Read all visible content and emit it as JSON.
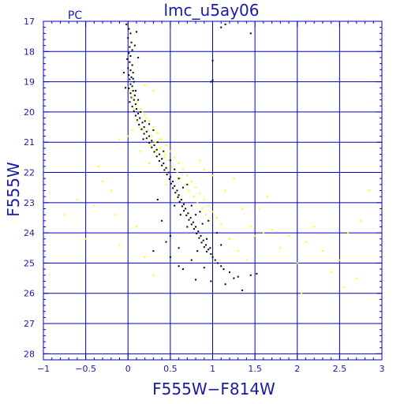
{
  "chart_data": {
    "type": "scatter",
    "title": "lmc_u5ay06",
    "corner_label": "PC",
    "xlabel": "F555W−F814W",
    "ylabel": "F555W",
    "xlim": [
      -1,
      3
    ],
    "ylim": [
      28.2,
      17.0
    ],
    "y_inverted": true,
    "grid": true,
    "x_major_ticks": [
      -1,
      -0.5,
      0,
      0.5,
      1,
      1.5,
      2,
      2.5,
      3
    ],
    "x_tick_labels": [
      "−1",
      "−0.5",
      "0",
      "0.5",
      "1",
      "1.5",
      "2",
      "2.5",
      "3"
    ],
    "y_major_ticks": [
      17,
      18,
      19,
      20,
      21,
      22,
      23,
      24,
      25,
      26,
      27,
      28
    ],
    "y_tick_labels": [
      "17",
      "18",
      "19",
      "20",
      "21",
      "22",
      "23",
      "24",
      "25",
      "26",
      "27",
      "28"
    ],
    "x_grid_lines": [
      -0.5,
      0,
      0.5,
      1,
      1.5,
      2,
      2.5
    ],
    "y_grid_lines": [
      18,
      19,
      20,
      21,
      22,
      23,
      24,
      25,
      26,
      27,
      28
    ],
    "colors": {
      "axis": "#0000cc",
      "text": "#1a1aa6",
      "series_black": "#000000",
      "series_yellow": "#ffff00"
    },
    "series": [
      {
        "color": "#000000",
        "points": [
          [
            -0.02,
            17.1
          ],
          [
            0.01,
            17.25
          ],
          [
            0.03,
            17.4
          ],
          [
            0.0,
            17.55
          ],
          [
            0.04,
            17.7
          ],
          [
            0.02,
            17.85
          ],
          [
            0.05,
            17.95
          ],
          [
            0.01,
            18.05
          ],
          [
            0.03,
            18.15
          ],
          [
            -0.01,
            18.25
          ],
          [
            0.02,
            18.35
          ],
          [
            0.05,
            18.45
          ],
          [
            0.0,
            18.55
          ],
          [
            0.03,
            18.62
          ],
          [
            0.06,
            18.7
          ],
          [
            0.01,
            18.78
          ],
          [
            0.04,
            18.85
          ],
          [
            0.02,
            18.92
          ],
          [
            0.07,
            19.0
          ],
          [
            0.03,
            19.08
          ],
          [
            0.05,
            19.15
          ],
          [
            0.01,
            19.22
          ],
          [
            0.06,
            19.3
          ],
          [
            0.03,
            19.38
          ],
          [
            0.08,
            19.45
          ],
          [
            0.04,
            19.52
          ],
          [
            0.07,
            19.6
          ],
          [
            0.02,
            19.67
          ],
          [
            0.09,
            19.74
          ],
          [
            0.05,
            19.82
          ],
          [
            0.1,
            19.9
          ],
          [
            0.07,
            19.97
          ],
          [
            0.12,
            20.05
          ],
          [
            0.09,
            20.12
          ],
          [
            0.14,
            20.2
          ],
          [
            0.11,
            20.27
          ],
          [
            0.17,
            20.35
          ],
          [
            0.13,
            20.42
          ],
          [
            0.19,
            20.5
          ],
          [
            0.16,
            20.57
          ],
          [
            0.22,
            20.65
          ],
          [
            0.19,
            20.72
          ],
          [
            0.25,
            20.8
          ],
          [
            0.22,
            20.87
          ],
          [
            0.28,
            20.95
          ],
          [
            0.25,
            21.02
          ],
          [
            0.31,
            21.1
          ],
          [
            0.28,
            21.17
          ],
          [
            0.34,
            21.25
          ],
          [
            0.31,
            21.32
          ],
          [
            0.37,
            21.4
          ],
          [
            0.34,
            21.47
          ],
          [
            0.4,
            21.55
          ],
          [
            0.37,
            21.62
          ],
          [
            0.42,
            21.7
          ],
          [
            0.4,
            21.77
          ],
          [
            0.45,
            21.85
          ],
          [
            0.43,
            21.92
          ],
          [
            0.48,
            22.0
          ],
          [
            0.46,
            22.07
          ],
          [
            0.5,
            22.15
          ],
          [
            0.49,
            22.22
          ],
          [
            0.53,
            22.3
          ],
          [
            0.51,
            22.37
          ],
          [
            0.55,
            22.45
          ],
          [
            0.53,
            22.52
          ],
          [
            0.58,
            22.6
          ],
          [
            0.56,
            22.67
          ],
          [
            0.6,
            22.75
          ],
          [
            0.59,
            22.82
          ],
          [
            0.63,
            22.9
          ],
          [
            0.61,
            22.97
          ],
          [
            0.66,
            23.05
          ],
          [
            0.64,
            23.12
          ],
          [
            0.68,
            23.2
          ],
          [
            0.66,
            23.27
          ],
          [
            0.71,
            23.35
          ],
          [
            0.69,
            23.42
          ],
          [
            0.74,
            23.5
          ],
          [
            0.72,
            23.57
          ],
          [
            0.77,
            23.65
          ],
          [
            0.75,
            23.72
          ],
          [
            0.8,
            23.8
          ],
          [
            0.78,
            23.87
          ],
          [
            0.83,
            23.95
          ],
          [
            0.81,
            24.02
          ],
          [
            0.86,
            24.1
          ],
          [
            0.84,
            24.17
          ],
          [
            0.89,
            24.25
          ],
          [
            0.87,
            24.32
          ],
          [
            0.92,
            24.4
          ],
          [
            0.9,
            24.47
          ],
          [
            0.95,
            24.55
          ],
          [
            0.93,
            24.62
          ],
          [
            0.98,
            24.7
          ],
          [
            1.0,
            24.8
          ],
          [
            1.03,
            24.9
          ],
          [
            1.06,
            25.0
          ],
          [
            1.1,
            25.1
          ],
          [
            1.13,
            25.2
          ],
          [
            0.55,
            23.1
          ],
          [
            0.62,
            23.4
          ],
          [
            0.7,
            23.8
          ],
          [
            0.5,
            24.1
          ],
          [
            0.45,
            24.3
          ],
          [
            0.6,
            24.5
          ],
          [
            0.82,
            24.6
          ],
          [
            0.75,
            24.9
          ],
          [
            0.9,
            25.15
          ],
          [
            1.2,
            25.3
          ],
          [
            1.25,
            25.5
          ],
          [
            1.15,
            25.7
          ],
          [
            1.3,
            25.45
          ],
          [
            1.45,
            25.4
          ],
          [
            1.52,
            25.35
          ],
          [
            0.98,
            25.6
          ],
          [
            0.65,
            25.2
          ],
          [
            0.5,
            24.8
          ],
          [
            0.4,
            23.6
          ],
          [
            0.35,
            22.9
          ],
          [
            0.85,
            23.3
          ],
          [
            0.95,
            23.6
          ],
          [
            1.05,
            24.0
          ],
          [
            1.1,
            24.4
          ],
          [
            0.72,
            22.6
          ],
          [
            0.25,
            20.4
          ],
          [
            0.18,
            20.9
          ],
          [
            0.12,
            19.6
          ],
          [
            -0.05,
            18.7
          ],
          [
            -0.03,
            19.2
          ],
          [
            0.1,
            17.35
          ],
          [
            0.08,
            17.8
          ],
          [
            0.12,
            18.2
          ],
          [
            0.06,
            18.9
          ],
          [
            0.09,
            19.3
          ],
          [
            0.15,
            20.0
          ],
          [
            0.2,
            20.3
          ],
          [
            0.3,
            20.6
          ],
          [
            0.35,
            21.0
          ],
          [
            0.42,
            21.3
          ],
          [
            0.5,
            21.6
          ],
          [
            0.55,
            21.9
          ],
          [
            0.6,
            22.2
          ],
          [
            0.65,
            22.5
          ],
          [
            0.7,
            22.4
          ],
          [
            0.75,
            23.1
          ],
          [
            0.8,
            23.4
          ],
          [
            0.88,
            23.7
          ],
          [
            0.93,
            24.2
          ],
          [
            0.97,
            24.5
          ],
          [
            1.1,
            17.2
          ],
          [
            1.15,
            17.1
          ],
          [
            1.0,
            18.3
          ],
          [
            1.45,
            17.4
          ],
          [
            0.98,
            19.0
          ],
          [
            1.0,
            18.95
          ],
          [
            0.3,
            24.6
          ],
          [
            0.6,
            25.1
          ],
          [
            0.8,
            25.55
          ],
          [
            1.35,
            25.9
          ]
        ]
      },
      {
        "color": "#ffff00",
        "points": [
          [
            0.05,
            19.5
          ],
          [
            0.1,
            19.7
          ],
          [
            0.15,
            19.9
          ],
          [
            0.2,
            20.1
          ],
          [
            0.25,
            20.3
          ],
          [
            0.3,
            20.5
          ],
          [
            0.35,
            20.7
          ],
          [
            0.4,
            20.9
          ],
          [
            0.45,
            21.1
          ],
          [
            0.5,
            21.3
          ],
          [
            0.55,
            21.5
          ],
          [
            0.6,
            21.7
          ],
          [
            0.65,
            21.9
          ],
          [
            0.7,
            22.1
          ],
          [
            0.75,
            22.3
          ],
          [
            0.8,
            22.5
          ],
          [
            0.85,
            22.7
          ],
          [
            0.9,
            22.9
          ],
          [
            0.95,
            23.1
          ],
          [
            1.0,
            23.3
          ],
          [
            0.12,
            20.3
          ],
          [
            0.18,
            20.6
          ],
          [
            0.22,
            20.2
          ],
          [
            0.28,
            20.8
          ],
          [
            0.32,
            21.0
          ],
          [
            0.38,
            21.2
          ],
          [
            0.44,
            21.4
          ],
          [
            0.48,
            21.6
          ],
          [
            0.52,
            21.8
          ],
          [
            0.58,
            22.0
          ],
          [
            0.62,
            22.2
          ],
          [
            0.68,
            22.4
          ],
          [
            0.72,
            22.6
          ],
          [
            0.78,
            22.8
          ],
          [
            0.82,
            23.0
          ],
          [
            0.88,
            23.2
          ],
          [
            0.92,
            23.4
          ],
          [
            0.98,
            23.6
          ],
          [
            1.05,
            23.5
          ],
          [
            1.1,
            23.7
          ],
          [
            0.02,
            19.3
          ],
          [
            0.07,
            19.9
          ],
          [
            0.13,
            20.5
          ],
          [
            0.17,
            20.0
          ],
          [
            0.24,
            20.6
          ],
          [
            0.27,
            21.1
          ],
          [
            0.33,
            21.3
          ],
          [
            0.37,
            20.9
          ],
          [
            0.43,
            21.5
          ],
          [
            0.47,
            21.9
          ],
          [
            -0.3,
            22.3
          ],
          [
            -0.35,
            21.8
          ],
          [
            -0.2,
            22.6
          ],
          [
            -0.4,
            23.1
          ],
          [
            -0.15,
            23.4
          ],
          [
            -0.75,
            23.4
          ],
          [
            -0.6,
            22.9
          ],
          [
            -0.5,
            24.2
          ],
          [
            -0.1,
            24.4
          ],
          [
            0.1,
            23.8
          ],
          [
            0.2,
            24.8
          ],
          [
            0.3,
            25.4
          ],
          [
            1.2,
            24.2
          ],
          [
            1.3,
            24.6
          ],
          [
            1.4,
            24.9
          ],
          [
            1.6,
            24.0
          ],
          [
            1.7,
            23.9
          ],
          [
            1.8,
            24.5
          ],
          [
            1.9,
            24.1
          ],
          [
            2.0,
            25.0
          ],
          [
            2.1,
            24.3
          ],
          [
            2.2,
            23.8
          ],
          [
            2.3,
            24.6
          ],
          [
            2.4,
            25.3
          ],
          [
            2.5,
            24.9
          ],
          [
            2.6,
            24.0
          ],
          [
            2.7,
            25.5
          ],
          [
            2.85,
            22.6
          ],
          [
            2.75,
            23.6
          ],
          [
            2.55,
            25.8
          ],
          [
            1.55,
            23.2
          ],
          [
            1.65,
            22.8
          ],
          [
            1.5,
            24.1
          ],
          [
            1.15,
            22.6
          ],
          [
            1.25,
            22.2
          ],
          [
            0.9,
            21.9
          ],
          [
            1.0,
            22.1
          ],
          [
            0.85,
            21.6
          ],
          [
            0.3,
            19.3
          ],
          [
            0.2,
            19.1
          ],
          [
            0.05,
            20.6
          ],
          [
            0.0,
            20.8
          ],
          [
            -0.1,
            20.9
          ],
          [
            0.15,
            21.3
          ],
          [
            0.25,
            21.7
          ],
          [
            0.45,
            22.4
          ],
          [
            0.55,
            22.9
          ],
          [
            1.35,
            23.2
          ],
          [
            1.45,
            23.8
          ],
          [
            2.05,
            26.0
          ]
        ]
      }
    ]
  }
}
